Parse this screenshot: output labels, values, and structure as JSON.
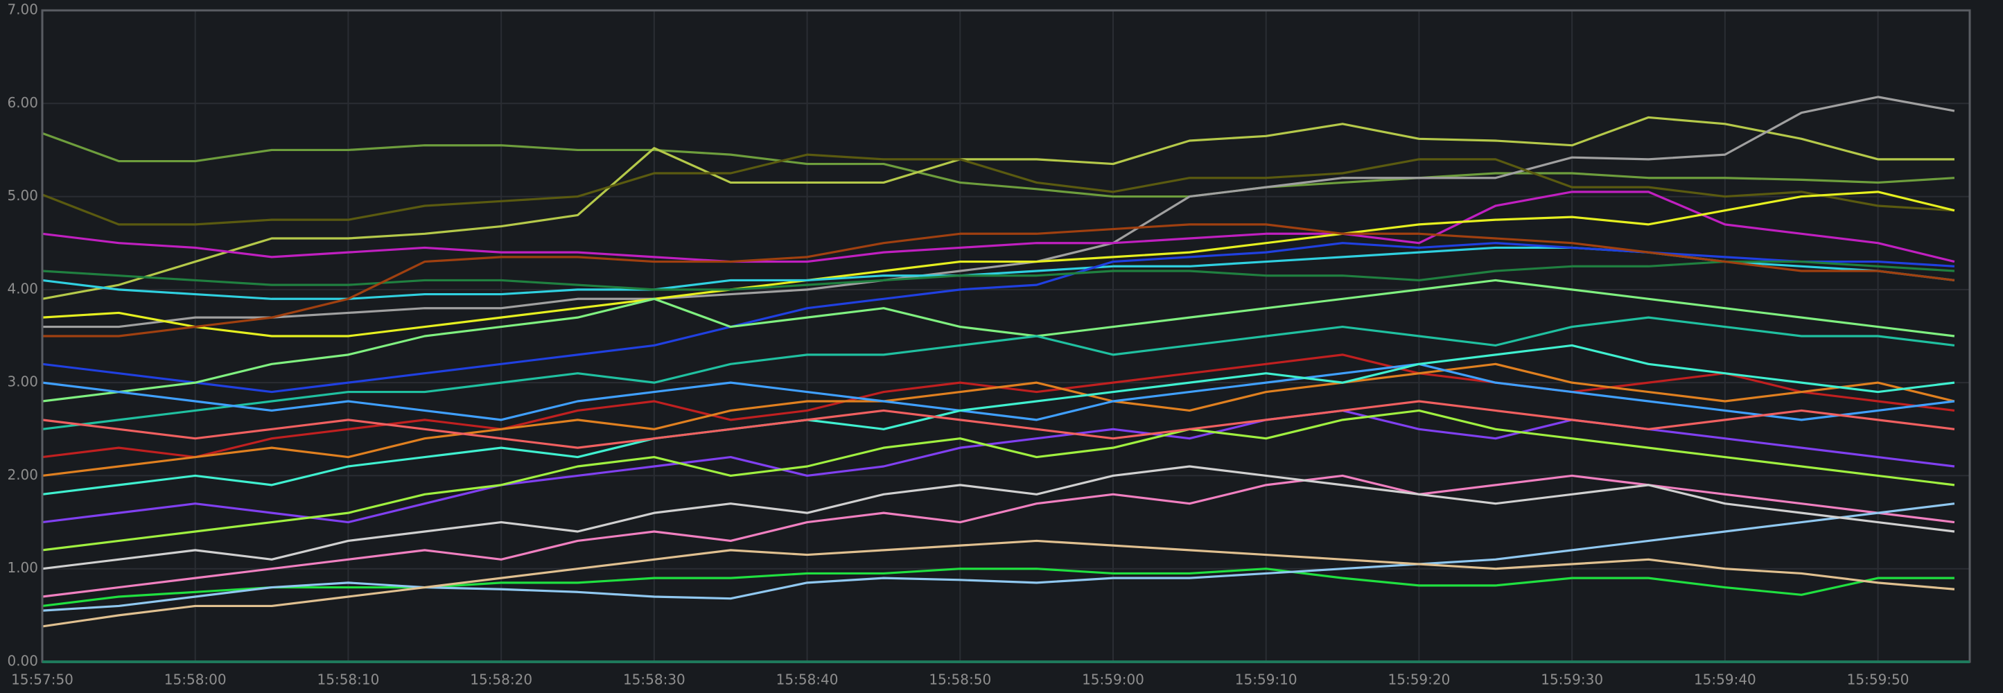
{
  "chart_data": {
    "type": "line",
    "x": [
      "15:57:50",
      "15:57:55",
      "15:58:00",
      "15:58:05",
      "15:58:10",
      "15:58:15",
      "15:58:20",
      "15:58:25",
      "15:58:30",
      "15:58:35",
      "15:58:40",
      "15:58:45",
      "15:58:50",
      "15:58:55",
      "15:59:00",
      "15:59:05",
      "15:59:10",
      "15:59:15",
      "15:59:20",
      "15:59:25",
      "15:59:30",
      "15:59:35",
      "15:59:40",
      "15:59:45",
      "15:59:50",
      "15:59:55"
    ],
    "xlim": [
      "15:57:50",
      "15:59:56"
    ],
    "xticks": [
      "15:57:50",
      "15:58:00",
      "15:58:10",
      "15:58:20",
      "15:58:30",
      "15:58:40",
      "15:58:50",
      "15:59:00",
      "15:59:10",
      "15:59:20",
      "15:59:30",
      "15:59:40",
      "15:59:50"
    ],
    "ylim": [
      0,
      7
    ],
    "yticks": [
      {
        "value": 0,
        "label": "0.00"
      },
      {
        "value": 1,
        "label": "1.00"
      },
      {
        "value": 2,
        "label": "2.00"
      },
      {
        "value": 3,
        "label": "3.00"
      },
      {
        "value": 4,
        "label": "4.00"
      },
      {
        "value": 5,
        "label": "5.00"
      },
      {
        "value": 6,
        "label": "6.00"
      },
      {
        "value": 7,
        "label": "7.00"
      }
    ],
    "grid": true,
    "series": [
      {
        "color": "#6e9e3d",
        "values": [
          5.68,
          5.38,
          5.38,
          5.5,
          5.5,
          5.55,
          5.55,
          5.5,
          5.5,
          5.45,
          5.35,
          5.35,
          5.15,
          5.08,
          5.0,
          5.0,
          5.1,
          5.15,
          5.2,
          5.25,
          5.25,
          5.2,
          5.2,
          5.18,
          5.15,
          5.2
        ]
      },
      {
        "color": "#b5c94a",
        "values": [
          3.9,
          4.05,
          4.3,
          4.55,
          4.55,
          4.6,
          4.68,
          4.8,
          5.52,
          5.15,
          5.15,
          5.15,
          5.4,
          5.4,
          5.35,
          5.6,
          5.65,
          5.78,
          5.62,
          5.6,
          5.55,
          5.85,
          5.78,
          5.62,
          5.4,
          5.4
        ]
      },
      {
        "color": "#a0a0a0",
        "values": [
          3.6,
          3.6,
          3.7,
          3.7,
          3.75,
          3.8,
          3.8,
          3.9,
          3.9,
          3.95,
          4.0,
          4.1,
          4.2,
          4.3,
          4.5,
          5.0,
          5.1,
          5.2,
          5.2,
          5.2,
          5.42,
          5.4,
          5.45,
          5.9,
          6.07,
          5.92
        ]
      },
      {
        "color": "#5a5a10",
        "values": [
          5.02,
          4.7,
          4.7,
          4.75,
          4.75,
          4.9,
          4.95,
          5.0,
          5.25,
          5.25,
          5.45,
          5.4,
          5.4,
          5.15,
          5.05,
          5.2,
          5.2,
          5.25,
          5.4,
          5.4,
          5.1,
          5.1,
          5.0,
          5.05,
          4.9,
          4.85
        ]
      },
      {
        "color": "#c020c0",
        "values": [
          4.6,
          4.5,
          4.45,
          4.35,
          4.4,
          4.45,
          4.4,
          4.4,
          4.35,
          4.3,
          4.3,
          4.4,
          4.45,
          4.5,
          4.5,
          4.55,
          4.6,
          4.6,
          4.5,
          4.9,
          5.05,
          5.05,
          4.7,
          4.6,
          4.5,
          4.3
        ]
      },
      {
        "color": "#e6f020",
        "values": [
          3.7,
          3.75,
          3.6,
          3.5,
          3.5,
          3.6,
          3.7,
          3.8,
          3.9,
          4.0,
          4.1,
          4.2,
          4.3,
          4.3,
          4.35,
          4.4,
          4.5,
          4.6,
          4.7,
          4.75,
          4.78,
          4.7,
          4.85,
          5.0,
          5.05,
          4.85
        ]
      },
      {
        "color": "#30d0e0",
        "values": [
          4.1,
          4.0,
          3.95,
          3.9,
          3.9,
          3.95,
          3.95,
          4.0,
          4.0,
          4.1,
          4.1,
          4.15,
          4.15,
          4.2,
          4.25,
          4.25,
          4.3,
          4.35,
          4.4,
          4.45,
          4.45,
          4.4,
          4.3,
          4.25,
          4.2,
          4.1
        ]
      },
      {
        "color": "#2040e0",
        "values": [
          3.2,
          3.1,
          3.0,
          2.9,
          3.0,
          3.1,
          3.2,
          3.3,
          3.4,
          3.6,
          3.8,
          3.9,
          4.0,
          4.05,
          4.3,
          4.35,
          4.4,
          4.5,
          4.45,
          4.5,
          4.45,
          4.4,
          4.35,
          4.3,
          4.3,
          4.25
        ]
      },
      {
        "color": "#80f080",
        "values": [
          2.8,
          2.9,
          3.0,
          3.2,
          3.3,
          3.5,
          3.6,
          3.7,
          3.9,
          3.6,
          3.7,
          3.8,
          3.6,
          3.5,
          3.6,
          3.7,
          3.8,
          3.9,
          4.0,
          4.1,
          4.0,
          3.9,
          3.8,
          3.7,
          3.6,
          3.5
        ]
      },
      {
        "color": "#20c0a0",
        "values": [
          2.5,
          2.6,
          2.7,
          2.8,
          2.9,
          2.9,
          3.0,
          3.1,
          3.0,
          3.2,
          3.3,
          3.3,
          3.4,
          3.5,
          3.3,
          3.4,
          3.5,
          3.6,
          3.5,
          3.4,
          3.6,
          3.7,
          3.6,
          3.5,
          3.5,
          3.4
        ]
      },
      {
        "color": "#c02020",
        "values": [
          2.2,
          2.3,
          2.2,
          2.4,
          2.5,
          2.6,
          2.5,
          2.7,
          2.8,
          2.6,
          2.7,
          2.9,
          3.0,
          2.9,
          3.0,
          3.1,
          3.2,
          3.3,
          3.1,
          3.0,
          2.9,
          3.0,
          3.1,
          2.9,
          2.8,
          2.7
        ]
      },
      {
        "color": "#8040f0",
        "values": [
          1.5,
          1.6,
          1.7,
          1.6,
          1.5,
          1.7,
          1.9,
          2.0,
          2.1,
          2.2,
          2.0,
          2.1,
          2.3,
          2.4,
          2.5,
          2.4,
          2.6,
          2.7,
          2.5,
          2.4,
          2.6,
          2.5,
          2.4,
          2.3,
          2.2,
          2.1
        ]
      },
      {
        "color": "#e08020",
        "values": [
          2.0,
          2.1,
          2.2,
          2.3,
          2.2,
          2.4,
          2.5,
          2.6,
          2.5,
          2.7,
          2.8,
          2.8,
          2.9,
          3.0,
          2.8,
          2.7,
          2.9,
          3.0,
          3.1,
          3.2,
          3.0,
          2.9,
          2.8,
          2.9,
          3.0,
          2.8
        ]
      },
      {
        "color": "#f080c0",
        "values": [
          0.7,
          0.8,
          0.9,
          1.0,
          1.1,
          1.2,
          1.1,
          1.3,
          1.4,
          1.3,
          1.5,
          1.6,
          1.5,
          1.7,
          1.8,
          1.7,
          1.9,
          2.0,
          1.8,
          1.9,
          2.0,
          1.9,
          1.8,
          1.7,
          1.6,
          1.5
        ]
      },
      {
        "color": "#20e040",
        "values": [
          0.6,
          0.7,
          0.75,
          0.8,
          0.8,
          0.8,
          0.85,
          0.85,
          0.9,
          0.9,
          0.95,
          0.95,
          1.0,
          1.0,
          0.95,
          0.95,
          1.0,
          0.9,
          0.82,
          0.82,
          0.9,
          0.9,
          0.8,
          0.72,
          0.9,
          0.9
        ]
      },
      {
        "color": "#90c8f0",
        "values": [
          0.55,
          0.6,
          0.7,
          0.8,
          0.85,
          0.8,
          0.78,
          0.75,
          0.7,
          0.68,
          0.85,
          0.9,
          0.88,
          0.85,
          0.9,
          0.9,
          0.95,
          1.0,
          1.05,
          1.1,
          1.2,
          1.3,
          1.4,
          1.5,
          1.6,
          1.7
        ]
      },
      {
        "color": "#e0c090",
        "values": [
          0.38,
          0.5,
          0.6,
          0.6,
          0.7,
          0.8,
          0.9,
          1.0,
          1.1,
          1.2,
          1.15,
          1.2,
          1.25,
          1.3,
          1.25,
          1.2,
          1.15,
          1.1,
          1.05,
          1.0,
          1.05,
          1.1,
          1.0,
          0.95,
          0.85,
          0.78
        ]
      },
      {
        "color": "#a0f040",
        "values": [
          1.2,
          1.3,
          1.4,
          1.5,
          1.6,
          1.8,
          1.9,
          2.1,
          2.2,
          2.0,
          2.1,
          2.3,
          2.4,
          2.2,
          2.3,
          2.5,
          2.4,
          2.6,
          2.7,
          2.5,
          2.4,
          2.3,
          2.2,
          2.1,
          2.0,
          1.9
        ]
      },
      {
        "color": "#d0d0d0",
        "values": [
          1.0,
          1.1,
          1.2,
          1.1,
          1.3,
          1.4,
          1.5,
          1.4,
          1.6,
          1.7,
          1.6,
          1.8,
          1.9,
          1.8,
          2.0,
          2.1,
          2.0,
          1.9,
          1.8,
          1.7,
          1.8,
          1.9,
          1.7,
          1.6,
          1.5,
          1.4
        ]
      },
      {
        "color": "#40a0ff",
        "values": [
          3.0,
          2.9,
          2.8,
          2.7,
          2.8,
          2.7,
          2.6,
          2.8,
          2.9,
          3.0,
          2.9,
          2.8,
          2.7,
          2.6,
          2.8,
          2.9,
          3.0,
          3.1,
          3.2,
          3.0,
          2.9,
          2.8,
          2.7,
          2.6,
          2.7,
          2.8
        ]
      },
      {
        "color": "#208040",
        "values": [
          4.2,
          4.15,
          4.1,
          4.05,
          4.05,
          4.1,
          4.1,
          4.05,
          4.0,
          4.0,
          4.05,
          4.1,
          4.15,
          4.15,
          4.2,
          4.2,
          4.15,
          4.15,
          4.1,
          4.2,
          4.25,
          4.25,
          4.3,
          4.3,
          4.25,
          4.2
        ]
      },
      {
        "color": "#a04010",
        "values": [
          3.5,
          3.5,
          3.6,
          3.7,
          3.9,
          4.3,
          4.35,
          4.35,
          4.3,
          4.3,
          4.35,
          4.5,
          4.6,
          4.6,
          4.65,
          4.7,
          4.7,
          4.6,
          4.6,
          4.55,
          4.5,
          4.4,
          4.3,
          4.2,
          4.2,
          4.1
        ]
      },
      {
        "color": "#40f0d0",
        "values": [
          1.8,
          1.9,
          2.0,
          1.9,
          2.1,
          2.2,
          2.3,
          2.2,
          2.4,
          2.5,
          2.6,
          2.5,
          2.7,
          2.8,
          2.9,
          3.0,
          3.1,
          3.0,
          3.2,
          3.3,
          3.4,
          3.2,
          3.1,
          3.0,
          2.9,
          3.0
        ]
      },
      {
        "color": "#f06060",
        "values": [
          2.6,
          2.5,
          2.4,
          2.5,
          2.6,
          2.5,
          2.4,
          2.3,
          2.4,
          2.5,
          2.6,
          2.7,
          2.6,
          2.5,
          2.4,
          2.5,
          2.6,
          2.7,
          2.8,
          2.7,
          2.6,
          2.5,
          2.6,
          2.7,
          2.6,
          2.5
        ]
      }
    ]
  }
}
